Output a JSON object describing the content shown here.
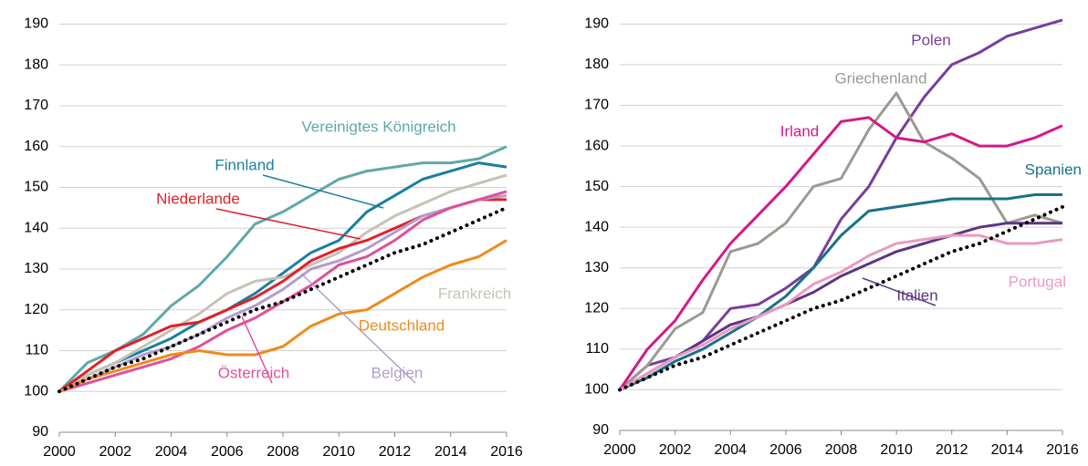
{
  "chart_data": [
    {
      "type": "line",
      "x": [
        2000,
        2001,
        2002,
        2003,
        2004,
        2005,
        2006,
        2007,
        2008,
        2009,
        2010,
        2011,
        2012,
        2013,
        2014,
        2015,
        2016
      ],
      "xlim": [
        2000,
        2016
      ],
      "xticks": [
        2000,
        2002,
        2004,
        2006,
        2008,
        2010,
        2012,
        2014,
        2016
      ],
      "ylim": [
        90,
        193
      ],
      "yticks": [
        90,
        100,
        110,
        120,
        130,
        140,
        150,
        160,
        170,
        180,
        190
      ],
      "grid": true,
      "series": [
        {
          "name": "Vereinigtes Königreich",
          "color": "#5fa8a8",
          "values": [
            100,
            107,
            110,
            114,
            121,
            126,
            133,
            141,
            144,
            148,
            152,
            154,
            155,
            156,
            156,
            157,
            160
          ]
        },
        {
          "name": "Finnland",
          "color": "#1a7fa0",
          "values": [
            100,
            104,
            107,
            110,
            113,
            117,
            120,
            124,
            129,
            134,
            137,
            144,
            148,
            152,
            154,
            156,
            155
          ]
        },
        {
          "name": "Frankreich",
          "color": "#c6c2b5",
          "values": [
            100,
            104,
            107,
            111,
            115,
            119,
            124,
            127,
            128,
            131,
            134,
            139,
            143,
            146,
            149,
            151,
            153
          ]
        },
        {
          "name": "Niederlande",
          "color": "#e0202a",
          "values": [
            100,
            105,
            110,
            113,
            116,
            117,
            120,
            123,
            127,
            132,
            135,
            137,
            140,
            143,
            145,
            147,
            147
          ]
        },
        {
          "name": "Belgien",
          "color": "#b39dcc",
          "values": [
            100,
            103,
            106,
            109,
            111,
            114,
            118,
            121,
            125,
            130,
            132,
            135,
            139,
            143,
            145,
            147,
            148
          ]
        },
        {
          "name": "Österreich",
          "color": "#e0509a",
          "values": [
            100,
            102,
            104,
            106,
            108,
            111,
            115,
            118,
            122,
            126,
            131,
            133,
            137,
            142,
            145,
            147,
            149
          ]
        },
        {
          "name": "Deutschland",
          "color": "#f08a1a",
          "values": [
            100,
            103,
            105,
            107,
            109,
            110,
            109,
            109,
            111,
            116,
            119,
            120,
            124,
            128,
            131,
            133,
            137
          ]
        },
        {
          "color": "#000000",
          "style": "dotted",
          "values": [
            100,
            103,
            106,
            108,
            111,
            114,
            117,
            120,
            122,
            125,
            128,
            131,
            134,
            136,
            139,
            142,
            145
          ]
        }
      ]
    },
    {
      "type": "line",
      "x": [
        2000,
        2001,
        2002,
        2003,
        2004,
        2005,
        2006,
        2007,
        2008,
        2009,
        2010,
        2011,
        2012,
        2013,
        2014,
        2015,
        2016
      ],
      "xlim": [
        2000,
        2016
      ],
      "xticks": [
        2000,
        2002,
        2004,
        2006,
        2008,
        2010,
        2012,
        2014,
        2016
      ],
      "ylim": [
        90,
        193
      ],
      "yticks": [
        90,
        100,
        110,
        120,
        130,
        140,
        150,
        160,
        170,
        180,
        190
      ],
      "grid": true,
      "series": [
        {
          "name": "Polen",
          "color": "#7a3d9a",
          "values": [
            100,
            106,
            108,
            112,
            120,
            121,
            125,
            130,
            142,
            150,
            162,
            172,
            180,
            183,
            187,
            189,
            191
          ]
        },
        {
          "name": "Griechenland",
          "color": "#9a9a92",
          "values": [
            100,
            106,
            115,
            119,
            134,
            136,
            141,
            150,
            152,
            164,
            173,
            161,
            157,
            152,
            141,
            143,
            141
          ]
        },
        {
          "name": "Irland",
          "color": "#d4188a",
          "values": [
            100,
            110,
            117,
            127,
            136,
            143,
            150,
            158,
            166,
            167,
            162,
            161,
            163,
            160,
            160,
            162,
            165
          ]
        },
        {
          "name": "Spanien",
          "color": "#17728a",
          "values": [
            100,
            103,
            107,
            110,
            114,
            118,
            123,
            130,
            138,
            144,
            145,
            146,
            147,
            147,
            147,
            148,
            148
          ]
        },
        {
          "name": "Italien",
          "color": "#5d3580",
          "values": [
            100,
            104,
            108,
            112,
            116,
            118,
            121,
            124,
            128,
            131,
            134,
            136,
            138,
            140,
            141,
            141,
            141
          ]
        },
        {
          "name": "Portugal",
          "color": "#eb9ac0",
          "values": [
            100,
            104,
            108,
            111,
            115,
            118,
            121,
            126,
            129,
            133,
            136,
            137,
            138,
            138,
            136,
            136,
            137
          ]
        },
        {
          "color": "#000000",
          "style": "dotted",
          "values": [
            100,
            103,
            106,
            108,
            111,
            114,
            117,
            120,
            122,
            125,
            128,
            131,
            134,
            136,
            139,
            142,
            145
          ]
        }
      ]
    }
  ]
}
